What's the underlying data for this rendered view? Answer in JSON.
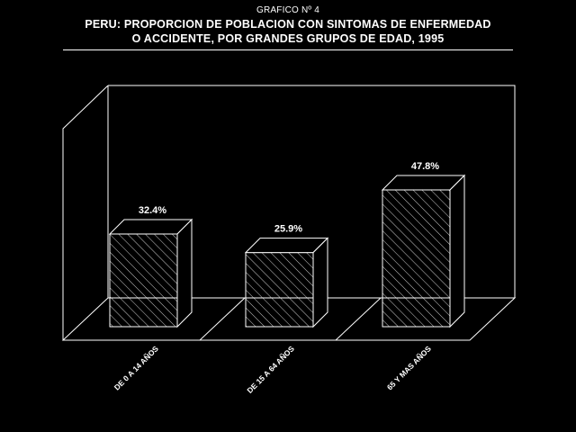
{
  "header": {
    "chart_label": "GRAFICO Nº 4",
    "title_line1": "PERU: PROPORCION DE POBLACION CON SINTOMAS DE ENFERMEDAD",
    "title_line2": "O ACCIDENTE, POR GRANDES GRUPOS DE EDAD, 1995"
  },
  "chart_data": {
    "type": "bar",
    "title": "PERU: PROPORCION DE POBLACION CON SINTOMAS DE ENFERMEDAD O ACCIDENTE, POR GRANDES GRUPOS DE EDAD, 1995",
    "categories": [
      "DE 0 A 14 AÑOS",
      "DE 15 A 64 AÑOS",
      "65 Y MAS AÑOS"
    ],
    "values": [
      32.4,
      25.9,
      47.8
    ],
    "data_labels": [
      "32.4%",
      "25.9%",
      "47.8%"
    ],
    "xlabel": "",
    "ylabel": "",
    "ylim": [
      0,
      60
    ],
    "grid": false,
    "legend": "none",
    "style": "3d-hatched",
    "colors": {
      "background": "#000000",
      "foreground": "#ffffff"
    }
  }
}
